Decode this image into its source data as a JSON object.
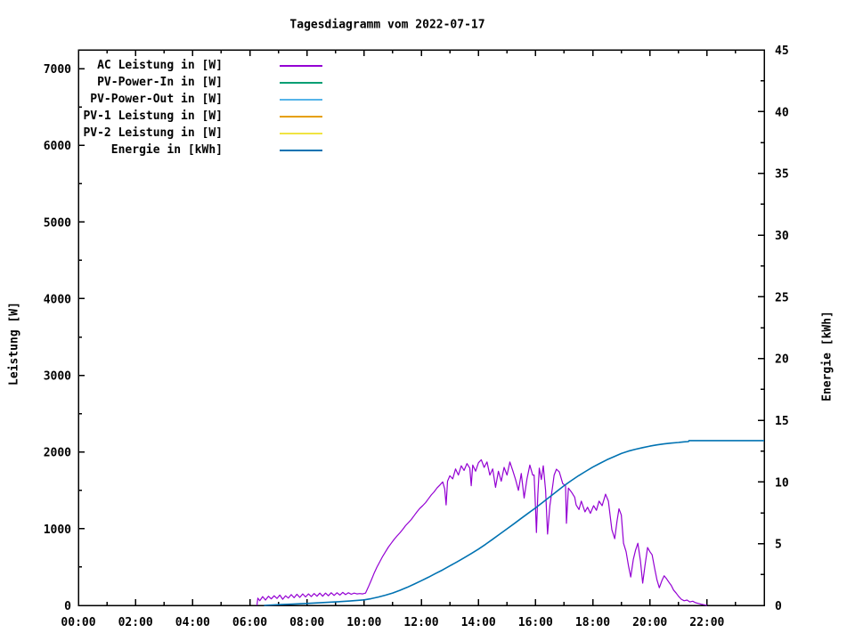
{
  "chart_data": {
    "type": "line",
    "title": "Tagesdiagramm vom 2022-07-17",
    "ylabel": "Leistung [W]",
    "y2label": "Energie [kWh]",
    "grid": false,
    "legend_position": "top-left-inside",
    "x_axis": {
      "min": 0,
      "max": 24,
      "minor_step": 1,
      "ticks": [
        {
          "v": 0,
          "label": "00:00"
        },
        {
          "v": 2,
          "label": "02:00"
        },
        {
          "v": 4,
          "label": "04:00"
        },
        {
          "v": 6,
          "label": "06:00"
        },
        {
          "v": 8,
          "label": "08:00"
        },
        {
          "v": 10,
          "label": "10:00"
        },
        {
          "v": 12,
          "label": "12:00"
        },
        {
          "v": 14,
          "label": "14:00"
        },
        {
          "v": 16,
          "label": "16:00"
        },
        {
          "v": 18,
          "label": "18:00"
        },
        {
          "v": 20,
          "label": "20:00"
        },
        {
          "v": 22,
          "label": "22:00"
        }
      ]
    },
    "y_left": {
      "min": 0,
      "max": 7245,
      "minor_step": 500,
      "ticks": [
        {
          "v": 0,
          "label": "0"
        },
        {
          "v": 1000,
          "label": "1000"
        },
        {
          "v": 2000,
          "label": "2000"
        },
        {
          "v": 3000,
          "label": "3000"
        },
        {
          "v": 4000,
          "label": "4000"
        },
        {
          "v": 5000,
          "label": "5000"
        },
        {
          "v": 6000,
          "label": "6000"
        },
        {
          "v": 7000,
          "label": "7000"
        }
      ]
    },
    "y_right": {
      "min": 0,
      "max": 45,
      "minor_step": 2.5,
      "ticks": [
        {
          "v": 0,
          "label": "0"
        },
        {
          "v": 5,
          "label": "5"
        },
        {
          "v": 10,
          "label": "10"
        },
        {
          "v": 15,
          "label": "15"
        },
        {
          "v": 20,
          "label": "20"
        },
        {
          "v": 25,
          "label": "25"
        },
        {
          "v": 30,
          "label": "30"
        },
        {
          "v": 35,
          "label": "35"
        },
        {
          "v": 40,
          "label": "40"
        },
        {
          "v": 45,
          "label": "45"
        }
      ]
    },
    "series": [
      {
        "key": "ac-leistung",
        "name": "AC Leistung in [W]",
        "color": "#9400D3",
        "axis": "left",
        "width": 1.2,
        "points": [
          [
            6.25,
            0
          ],
          [
            6.28,
            95
          ],
          [
            6.35,
            60
          ],
          [
            6.45,
            115
          ],
          [
            6.55,
            70
          ],
          [
            6.65,
            120
          ],
          [
            6.75,
            85
          ],
          [
            6.85,
            125
          ],
          [
            6.95,
            90
          ],
          [
            7.05,
            135
          ],
          [
            7.15,
            80
          ],
          [
            7.25,
            125
          ],
          [
            7.35,
            95
          ],
          [
            7.45,
            140
          ],
          [
            7.55,
            100
          ],
          [
            7.65,
            145
          ],
          [
            7.75,
            105
          ],
          [
            7.85,
            150
          ],
          [
            7.95,
            110
          ],
          [
            8.05,
            150
          ],
          [
            8.15,
            115
          ],
          [
            8.25,
            155
          ],
          [
            8.35,
            120
          ],
          [
            8.45,
            160
          ],
          [
            8.55,
            120
          ],
          [
            8.65,
            160
          ],
          [
            8.75,
            125
          ],
          [
            8.85,
            165
          ],
          [
            8.95,
            130
          ],
          [
            9.05,
            165
          ],
          [
            9.15,
            135
          ],
          [
            9.25,
            170
          ],
          [
            9.35,
            140
          ],
          [
            9.45,
            165
          ],
          [
            9.55,
            145
          ],
          [
            9.65,
            160
          ],
          [
            9.75,
            150
          ],
          [
            9.85,
            155
          ],
          [
            9.95,
            150
          ],
          [
            10.05,
            160
          ],
          [
            10.15,
            240
          ],
          [
            10.25,
            330
          ],
          [
            10.35,
            420
          ],
          [
            10.45,
            500
          ],
          [
            10.55,
            570
          ],
          [
            10.65,
            640
          ],
          [
            10.75,
            700
          ],
          [
            10.85,
            760
          ],
          [
            10.95,
            810
          ],
          [
            11.05,
            860
          ],
          [
            11.15,
            905
          ],
          [
            11.25,
            945
          ],
          [
            11.35,
            990
          ],
          [
            11.45,
            1040
          ],
          [
            11.55,
            1080
          ],
          [
            11.65,
            1120
          ],
          [
            11.75,
            1170
          ],
          [
            11.85,
            1220
          ],
          [
            11.95,
            1265
          ],
          [
            12.05,
            1300
          ],
          [
            12.15,
            1340
          ],
          [
            12.25,
            1390
          ],
          [
            12.35,
            1440
          ],
          [
            12.45,
            1480
          ],
          [
            12.55,
            1530
          ],
          [
            12.65,
            1570
          ],
          [
            12.75,
            1610
          ],
          [
            12.82,
            1520
          ],
          [
            12.87,
            1310
          ],
          [
            12.92,
            1620
          ],
          [
            13.0,
            1690
          ],
          [
            13.1,
            1650
          ],
          [
            13.2,
            1780
          ],
          [
            13.3,
            1700
          ],
          [
            13.4,
            1820
          ],
          [
            13.5,
            1760
          ],
          [
            13.6,
            1850
          ],
          [
            13.7,
            1790
          ],
          [
            13.75,
            1560
          ],
          [
            13.8,
            1830
          ],
          [
            13.9,
            1750
          ],
          [
            14.0,
            1860
          ],
          [
            14.1,
            1900
          ],
          [
            14.2,
            1800
          ],
          [
            14.3,
            1870
          ],
          [
            14.4,
            1700
          ],
          [
            14.5,
            1780
          ],
          [
            14.6,
            1540
          ],
          [
            14.7,
            1750
          ],
          [
            14.8,
            1620
          ],
          [
            14.9,
            1800
          ],
          [
            15.0,
            1700
          ],
          [
            15.1,
            1870
          ],
          [
            15.2,
            1760
          ],
          [
            15.3,
            1640
          ],
          [
            15.4,
            1500
          ],
          [
            15.5,
            1720
          ],
          [
            15.6,
            1400
          ],
          [
            15.7,
            1650
          ],
          [
            15.8,
            1830
          ],
          [
            15.9,
            1700
          ],
          [
            15.95,
            1700
          ],
          [
            16.0,
            1265
          ],
          [
            16.03,
            950
          ],
          [
            16.08,
            1450
          ],
          [
            16.13,
            1790
          ],
          [
            16.2,
            1640
          ],
          [
            16.27,
            1820
          ],
          [
            16.35,
            1500
          ],
          [
            16.42,
            930
          ],
          [
            16.5,
            1300
          ],
          [
            16.6,
            1560
          ],
          [
            16.65,
            1700
          ],
          [
            16.73,
            1776
          ],
          [
            16.83,
            1740
          ],
          [
            16.95,
            1590
          ],
          [
            17.05,
            1560
          ],
          [
            17.08,
            1070
          ],
          [
            17.15,
            1530
          ],
          [
            17.27,
            1470
          ],
          [
            17.37,
            1410
          ],
          [
            17.42,
            1310
          ],
          [
            17.52,
            1250
          ],
          [
            17.6,
            1360
          ],
          [
            17.73,
            1220
          ],
          [
            17.82,
            1280
          ],
          [
            17.92,
            1200
          ],
          [
            18.03,
            1300
          ],
          [
            18.13,
            1240
          ],
          [
            18.22,
            1360
          ],
          [
            18.33,
            1300
          ],
          [
            18.45,
            1450
          ],
          [
            18.55,
            1360
          ],
          [
            18.67,
            988
          ],
          [
            18.77,
            870
          ],
          [
            18.85,
            1100
          ],
          [
            18.92,
            1260
          ],
          [
            19.0,
            1180
          ],
          [
            19.08,
            810
          ],
          [
            19.17,
            700
          ],
          [
            19.25,
            520
          ],
          [
            19.33,
            370
          ],
          [
            19.42,
            600
          ],
          [
            19.5,
            720
          ],
          [
            19.58,
            810
          ],
          [
            19.67,
            580
          ],
          [
            19.75,
            290
          ],
          [
            19.83,
            520
          ],
          [
            19.92,
            755
          ],
          [
            20.0,
            700
          ],
          [
            20.08,
            660
          ],
          [
            20.17,
            480
          ],
          [
            20.25,
            330
          ],
          [
            20.33,
            230
          ],
          [
            20.42,
            320
          ],
          [
            20.5,
            385
          ],
          [
            20.58,
            350
          ],
          [
            20.67,
            300
          ],
          [
            20.75,
            260
          ],
          [
            20.83,
            200
          ],
          [
            20.92,
            160
          ],
          [
            21.0,
            120
          ],
          [
            21.1,
            80
          ],
          [
            21.2,
            60
          ],
          [
            21.3,
            70
          ],
          [
            21.4,
            45
          ],
          [
            21.5,
            55
          ],
          [
            21.6,
            35
          ],
          [
            21.7,
            25
          ],
          [
            21.8,
            15
          ],
          [
            21.9,
            8
          ],
          [
            22.0,
            0
          ]
        ]
      },
      {
        "key": "pv-power-in",
        "name": "PV-Power-In in [W]",
        "color": "#009E73",
        "axis": "left",
        "width": 1.2,
        "points": []
      },
      {
        "key": "pv-power-out",
        "name": "PV-Power-Out in [W]",
        "color": "#56B4E9",
        "axis": "left",
        "width": 1.2,
        "points": []
      },
      {
        "key": "pv1-leistung",
        "name": "PV-1 Leistung in [W]",
        "color": "#E69F00",
        "axis": "left",
        "width": 1.2,
        "points": []
      },
      {
        "key": "pv2-leistung",
        "name": "PV-2 Leistung in [W]",
        "color": "#F0E442",
        "axis": "left",
        "width": 1.2,
        "points": []
      },
      {
        "key": "energie",
        "name": "Energie in [kWh]",
        "color": "#0072B2",
        "axis": "right",
        "width": 1.6,
        "points": [
          [
            6.5,
            0.0
          ],
          [
            7.0,
            0.06
          ],
          [
            7.5,
            0.1
          ],
          [
            8.0,
            0.16
          ],
          [
            8.5,
            0.22
          ],
          [
            9.0,
            0.28
          ],
          [
            9.5,
            0.35
          ],
          [
            10.0,
            0.45
          ],
          [
            10.25,
            0.55
          ],
          [
            10.5,
            0.68
          ],
          [
            10.75,
            0.83
          ],
          [
            11.0,
            1.0
          ],
          [
            11.25,
            1.22
          ],
          [
            11.5,
            1.46
          ],
          [
            11.75,
            1.72
          ],
          [
            12.0,
            2.0
          ],
          [
            12.25,
            2.28
          ],
          [
            12.5,
            2.58
          ],
          [
            12.75,
            2.88
          ],
          [
            13.0,
            3.2
          ],
          [
            13.25,
            3.52
          ],
          [
            13.5,
            3.85
          ],
          [
            13.75,
            4.2
          ],
          [
            14.0,
            4.56
          ],
          [
            14.25,
            4.95
          ],
          [
            14.5,
            5.36
          ],
          [
            14.75,
            5.78
          ],
          [
            15.0,
            6.2
          ],
          [
            15.25,
            6.62
          ],
          [
            15.5,
            7.05
          ],
          [
            15.75,
            7.48
          ],
          [
            16.0,
            7.9
          ],
          [
            16.25,
            8.35
          ],
          [
            16.5,
            8.8
          ],
          [
            16.75,
            9.25
          ],
          [
            17.0,
            9.7
          ],
          [
            17.25,
            10.1
          ],
          [
            17.5,
            10.5
          ],
          [
            17.75,
            10.85
          ],
          [
            18.0,
            11.2
          ],
          [
            18.25,
            11.5
          ],
          [
            18.5,
            11.8
          ],
          [
            18.75,
            12.05
          ],
          [
            19.0,
            12.3
          ],
          [
            19.25,
            12.5
          ],
          [
            19.5,
            12.65
          ],
          [
            19.75,
            12.78
          ],
          [
            20.0,
            12.9
          ],
          [
            20.25,
            13.0
          ],
          [
            20.5,
            13.08
          ],
          [
            20.75,
            13.15
          ],
          [
            21.0,
            13.2
          ],
          [
            21.2,
            13.25
          ],
          [
            21.35,
            13.27
          ],
          [
            21.37,
            13.35
          ],
          [
            22.0,
            13.35
          ],
          [
            23.0,
            13.35
          ],
          [
            24.0,
            13.35
          ]
        ]
      }
    ]
  }
}
